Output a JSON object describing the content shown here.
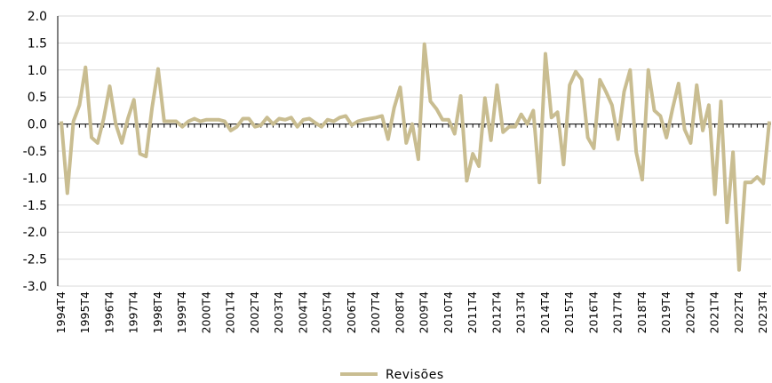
{
  "chart_data": {
    "type": "line",
    "title": "",
    "xlabel": "",
    "ylabel": "",
    "ylim": [
      -3.0,
      2.0
    ],
    "yticks": [
      "2.0",
      "1.5",
      "1.0",
      "0.5",
      "0.0",
      "-0.5",
      "-1.0",
      "-1.5",
      "-2.0",
      "-2.5",
      "-3.0"
    ],
    "grid": true,
    "legend_position": "bottom-center",
    "x": [
      "1994T4",
      "1995T1",
      "1995T2",
      "1995T3",
      "1995T4",
      "1996T1",
      "1996T2",
      "1996T3",
      "1996T4",
      "1997T1",
      "1997T2",
      "1997T3",
      "1997T4",
      "1998T1",
      "1998T2",
      "1998T3",
      "1998T4",
      "1999T1",
      "1999T2",
      "1999T3",
      "1999T4",
      "2000T1",
      "2000T2",
      "2000T3",
      "2000T4",
      "2001T1",
      "2001T2",
      "2001T3",
      "2001T4",
      "2002T1",
      "2002T2",
      "2002T3",
      "2002T4",
      "2003T1",
      "2003T2",
      "2003T3",
      "2003T4",
      "2004T1",
      "2004T2",
      "2004T3",
      "2004T4",
      "2005T1",
      "2005T2",
      "2005T3",
      "2005T4",
      "2006T1",
      "2006T2",
      "2006T3",
      "2006T4",
      "2007T1",
      "2007T2",
      "2007T3",
      "2007T4",
      "2008T1",
      "2008T2",
      "2008T3",
      "2008T4",
      "2009T1",
      "2009T2",
      "2009T3",
      "2009T4",
      "2010T1",
      "2010T2",
      "2010T3",
      "2010T4",
      "2011T1",
      "2011T2",
      "2011T3",
      "2011T4",
      "2012T1",
      "2012T2",
      "2012T3",
      "2012T4",
      "2013T1",
      "2013T2",
      "2013T3",
      "2013T4",
      "2014T1",
      "2014T2",
      "2014T3",
      "2014T4",
      "2015T1",
      "2015T2",
      "2015T3",
      "2015T4",
      "2016T1",
      "2016T2",
      "2016T3",
      "2016T4",
      "2017T1",
      "2017T2",
      "2017T3",
      "2017T4",
      "2018T1",
      "2018T2",
      "2018T3",
      "2018T4",
      "2019T1",
      "2019T2",
      "2019T3",
      "2019T4",
      "2020T1",
      "2020T2",
      "2020T3",
      "2020T4",
      "2021T1",
      "2021T2",
      "2021T3",
      "2021T4",
      "2022T1",
      "2022T2",
      "2022T3",
      "2022T4",
      "2023T1",
      "2023T2",
      "2023T3",
      "2023T4",
      "2024T1"
    ],
    "x_tick_labels": [
      "1994T4",
      "1995T4",
      "1996T4",
      "1997T4",
      "1998T4",
      "1999T4",
      "2000T4",
      "2001T4",
      "2002T4",
      "2003T4",
      "2004T4",
      "2005T4",
      "2006T4",
      "2007T4",
      "2008T4",
      "2009T4",
      "2010T4",
      "2011T4",
      "2012T4",
      "2013T4",
      "2014T4",
      "2015T4",
      "2016T4",
      "2017T4",
      "2018T4",
      "2019T4",
      "2020T4",
      "2021T4",
      "2022T4",
      "2023T4"
    ],
    "series": [
      {
        "name": "Revisões",
        "color": "#C9BD91",
        "values": [
          0.05,
          -1.28,
          0.05,
          0.35,
          1.05,
          -0.25,
          -0.35,
          0.1,
          0.7,
          0.0,
          -0.35,
          0.1,
          0.45,
          -0.55,
          -0.6,
          0.3,
          1.02,
          0.05,
          0.05,
          0.05,
          -0.05,
          0.05,
          0.1,
          0.05,
          0.08,
          0.08,
          0.08,
          0.05,
          -0.12,
          -0.05,
          0.1,
          0.1,
          -0.05,
          -0.02,
          0.12,
          0.0,
          0.1,
          0.08,
          0.12,
          -0.05,
          0.08,
          0.1,
          0.02,
          -0.05,
          0.08,
          0.05,
          0.12,
          0.15,
          -0.02,
          0.05,
          0.08,
          0.1,
          0.12,
          0.15,
          -0.28,
          0.3,
          0.68,
          -0.35,
          0.0,
          -0.65,
          1.48,
          0.42,
          0.28,
          0.08,
          0.08,
          -0.18,
          0.52,
          -1.05,
          -0.55,
          -0.78,
          0.48,
          -0.3,
          0.72,
          -0.15,
          -0.05,
          -0.05,
          0.18,
          0.0,
          0.25,
          -1.08,
          1.3,
          0.12,
          0.22,
          -0.75,
          0.72,
          0.97,
          0.82,
          -0.25,
          -0.45,
          0.82,
          0.6,
          0.35,
          -0.28,
          0.6,
          1.0,
          -0.52,
          -1.03,
          1.0,
          0.25,
          0.15,
          -0.25,
          0.28,
          0.75,
          -0.1,
          -0.35,
          0.72,
          -0.12,
          0.35,
          -1.3,
          0.42,
          -1.82,
          -0.52,
          -2.7,
          -1.08,
          -1.08,
          -0.98,
          -1.1,
          0.05
        ]
      }
    ]
  },
  "legend": {
    "label": "Revisões",
    "color": "#C9BD91"
  }
}
